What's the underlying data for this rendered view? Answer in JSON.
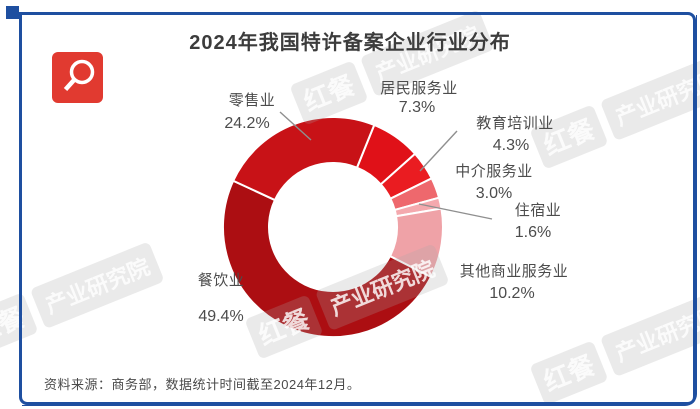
{
  "title": "2024年我国特许备案企业行业分布",
  "source_note": "资料来源：商务部，数据统计时间截至2024年12月。",
  "watermark": {
    "brand": "红餐",
    "division": "产业研究院"
  },
  "frame": {
    "accent_blue": "#1E4FA0",
    "logo_red": "#E13A30",
    "logo_icon": "magnifier-icon"
  },
  "chart_data": {
    "type": "pie",
    "donut": true,
    "title": "2024年我国特许备案企业行业分布",
    "unit": "%",
    "start_angle_deg": 22,
    "direction": "clockwise",
    "segments": [
      {
        "label": "居民服务业",
        "value": 7.3,
        "pct": "7.3%",
        "color": "#E01118"
      },
      {
        "label": "教育培训业",
        "value": 4.3,
        "pct": "4.3%",
        "color": "#EA1C21"
      },
      {
        "label": "中介服务业",
        "value": 3.0,
        "pct": "3.0%",
        "color": "#EE686D"
      },
      {
        "label": "住宿业",
        "value": 1.6,
        "pct": "1.6%",
        "color": "#F4A9AE"
      },
      {
        "label": "其他商业服务业",
        "value": 10.2,
        "pct": "10.2%",
        "color": "#EFA2A7"
      },
      {
        "label": "餐饮业",
        "value": 49.4,
        "pct": "49.4%",
        "color": "#AC0E12"
      },
      {
        "label": "零售业",
        "value": 24.2,
        "pct": "24.2%",
        "color": "#C81217"
      }
    ]
  }
}
